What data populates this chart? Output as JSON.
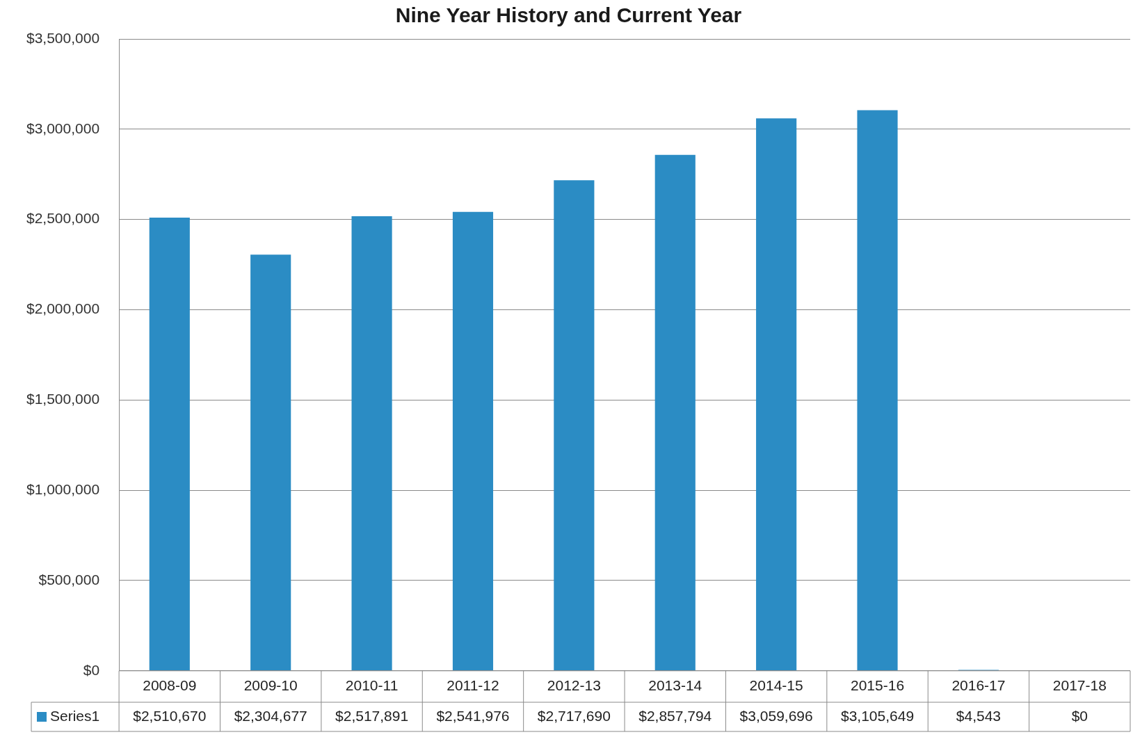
{
  "chart_data": {
    "type": "bar",
    "title": "Nine Year History and Current Year",
    "categories": [
      "2008-09",
      "2009-10",
      "2010-11",
      "2011-12",
      "2012-13",
      "2013-14",
      "2014-15",
      "2015-16",
      "2016-17",
      "2017-18"
    ],
    "series": [
      {
        "name": "Series1",
        "color": "#2b8cc4",
        "values": [
          2510670,
          2304677,
          2517891,
          2541976,
          2717690,
          2857794,
          3059696,
          3105649,
          4543,
          0
        ],
        "value_labels": [
          "$2,510,670",
          "$2,304,677",
          "$2,517,891",
          "$2,541,976",
          "$2,717,690",
          "$2,857,794",
          "$3,059,696",
          "$3,105,649",
          "$4,543",
          "$0"
        ]
      }
    ],
    "ylim": [
      0,
      3500000
    ],
    "yticks": [
      {
        "value": 0,
        "label": "$0"
      },
      {
        "value": 500000,
        "label": "$500,000"
      },
      {
        "value": 1000000,
        "label": "$1,000,000"
      },
      {
        "value": 1500000,
        "label": "$1,500,000"
      },
      {
        "value": 2000000,
        "label": "$2,000,000"
      },
      {
        "value": 2500000,
        "label": "$2,500,000"
      },
      {
        "value": 3000000,
        "label": "$3,000,000"
      },
      {
        "value": 3500000,
        "label": "$3,500,000"
      }
    ],
    "grid": "y",
    "legend": "bottom left"
  }
}
